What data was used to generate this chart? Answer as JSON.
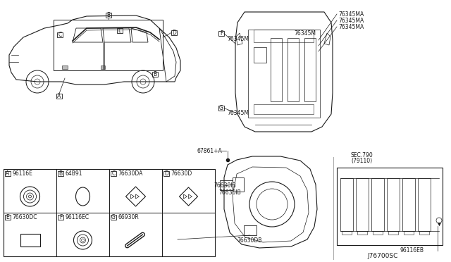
{
  "bg_color": "#ffffff",
  "line_color": "#1a1a1a",
  "text_color": "#1a1a1a",
  "grid_color": "#555555",
  "fs": 5.5,
  "fm": 6.5,
  "diagram_code": "J76700SC",
  "parts": [
    [
      "A",
      "96116E"
    ],
    [
      "B",
      "64B91"
    ],
    [
      "C",
      "76630DA"
    ],
    [
      "D",
      "76630D"
    ],
    [
      "E",
      "76630DC"
    ],
    [
      "F",
      "96116EC"
    ],
    [
      "G",
      "66930R"
    ]
  ],
  "top_labels_right": [
    "76345MA",
    "76345MA",
    "76345MA"
  ],
  "top_label_left": "76345M",
  "top_label_bottom": "76345M",
  "label_67861": "67861+A",
  "label_76630IB": "76630IB",
  "label_76630DB": "76630DB",
  "label_sec": "SEC.790",
  "label_79110": "(79110)",
  "label_96116EB": "96116EB"
}
